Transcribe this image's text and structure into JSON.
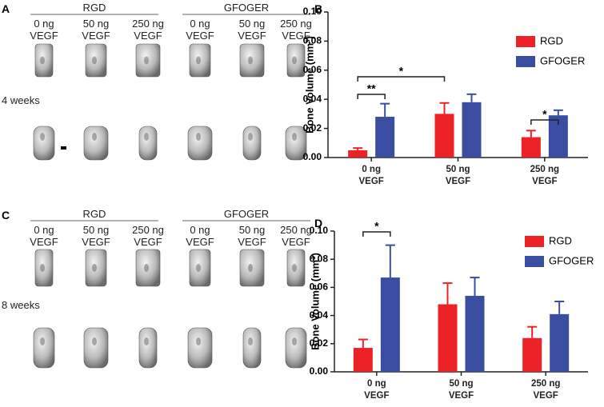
{
  "image_panels": [
    {
      "letter": "A",
      "groups": [
        {
          "name": "RGD",
          "columns": [
            "0 ng\nVEGF",
            "50 ng\nVEGF",
            "250 ng\nVEGF"
          ]
        },
        {
          "name": "GFOGER",
          "columns": [
            "0 ng\nVEGF",
            "50 ng\nVEGF",
            "250 ng\nVEGF"
          ]
        }
      ],
      "time": "4 weeks"
    },
    {
      "letter": "C",
      "groups": [
        {
          "name": "RGD",
          "columns": [
            "0 ng\nVEGF",
            "50 ng\nVEGF",
            "250 ng\nVEGF"
          ]
        },
        {
          "name": "GFOGER",
          "columns": [
            "0 ng\nVEGF",
            "50 ng\nVEGF",
            "250 ng\nVEGF"
          ]
        }
      ],
      "time": "8 weeks"
    }
  ],
  "chart_data": [
    {
      "type": "bar",
      "panel": "B",
      "y_label": "Bone Volume (mm³)",
      "categories": [
        "0 ng\nVEGF",
        "50 ng\nVEGF",
        "250 ng\nVEGF"
      ],
      "series": [
        {
          "name": "RGD",
          "color": "#ec2227",
          "values": [
            0.005,
            0.03,
            0.014
          ],
          "errors": [
            0.0015,
            0.0075,
            0.0045
          ]
        },
        {
          "name": "GFOGER",
          "color": "#3a4ea1",
          "values": [
            0.028,
            0.038,
            0.029
          ],
          "errors": [
            0.009,
            0.0055,
            0.0035
          ]
        }
      ],
      "ylim": [
        0,
        0.1
      ],
      "yticks": [
        {
          "value": 0,
          "label": "0.00"
        },
        {
          "value": 0.02,
          "label": "0.02"
        },
        {
          "value": 0.04,
          "label": "0.04"
        },
        {
          "value": 0.06,
          "label": "0.06"
        },
        {
          "value": 0.08,
          "label": "0.08"
        },
        {
          "value": 0.1,
          "label": "0.10"
        }
      ],
      "annotations": [
        "**",
        "*",
        "*"
      ],
      "legend": "upper right"
    },
    {
      "type": "bar",
      "panel": "D",
      "y_label": "Bone Volume (mm³)",
      "categories": [
        "0 ng\nVEGF",
        "50 ng\nVEGF",
        "250 ng\nVEGF"
      ],
      "series": [
        {
          "name": "RGD",
          "color": "#ec2227",
          "values": [
            0.017,
            0.048,
            0.024
          ],
          "errors": [
            0.006,
            0.015,
            0.008
          ]
        },
        {
          "name": "GFOGER",
          "color": "#3a4ea1",
          "values": [
            0.067,
            0.054,
            0.041
          ],
          "errors": [
            0.023,
            0.013,
            0.009
          ]
        }
      ],
      "ylim": [
        0,
        0.1
      ],
      "yticks": [
        {
          "value": 0,
          "label": "0.00"
        },
        {
          "value": 0.02,
          "label": "0.02"
        },
        {
          "value": 0.04,
          "label": "0.04"
        },
        {
          "value": 0.06,
          "label": "0.06"
        },
        {
          "value": 0.08,
          "label": "0.08"
        },
        {
          "value": 0.1,
          "label": "0.10"
        }
      ],
      "annotations": [
        "*"
      ],
      "legend": "upper right"
    }
  ]
}
